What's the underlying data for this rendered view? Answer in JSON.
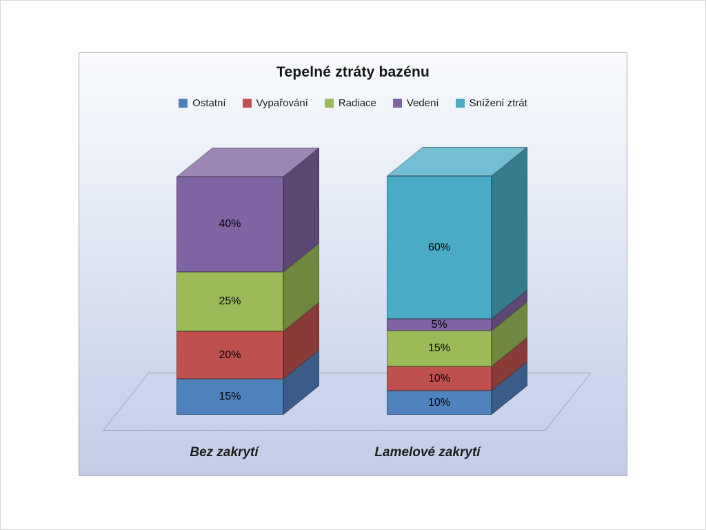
{
  "chart_data": {
    "type": "bar",
    "subtype": "3d-stacked",
    "stacking": "percent",
    "title": "Tepelné ztráty bazénu",
    "categories": [
      "Bez zakrytí",
      "Lamelové zakrytí"
    ],
    "series": [
      {
        "name": "Ostatní",
        "color": "#4F81BD",
        "values": [
          15,
          10
        ]
      },
      {
        "name": "Vypařování",
        "color": "#C0504D",
        "values": [
          20,
          10
        ]
      },
      {
        "name": "Radiace",
        "color": "#9BBB59",
        "values": [
          25,
          15
        ]
      },
      {
        "name": "Vedení",
        "color": "#8064A2",
        "values": [
          40,
          5
        ]
      },
      {
        "name": "Snížení ztrát",
        "color": "#4BACC6",
        "values": [
          0,
          60
        ]
      }
    ],
    "data_label_format": "{value}%",
    "value_unit": "%",
    "ylim": [
      0,
      100
    ],
    "legend_position": "top",
    "grid": false,
    "background_gradient": [
      "#f8fafd",
      "#c2cce6"
    ],
    "frame_border_color": "#a3a3a3"
  }
}
